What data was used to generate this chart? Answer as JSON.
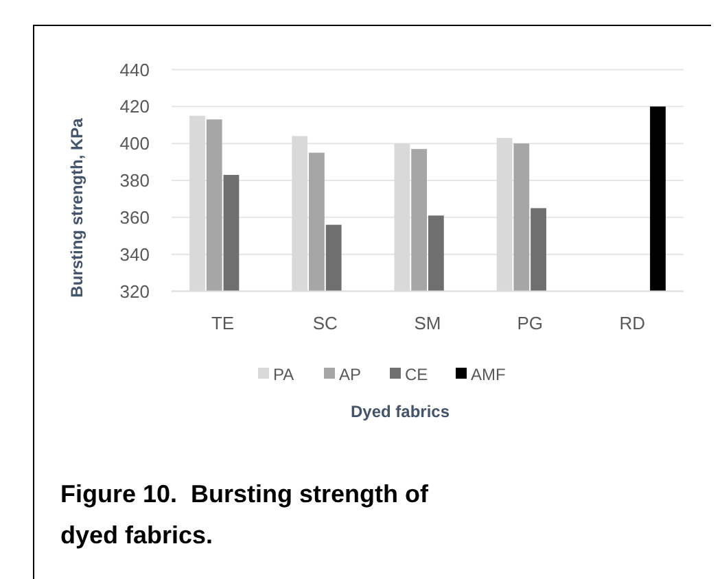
{
  "chart_data": {
    "type": "bar",
    "ylabel": "Bursting strength, KPa",
    "xlabel": "Dyed fabrics",
    "categories": [
      "TE",
      "SC",
      "SM",
      "PG",
      "RD"
    ],
    "series": [
      {
        "name": "PA",
        "color": "#d9d9d9",
        "values": [
          415,
          404,
          400,
          403,
          null
        ]
      },
      {
        "name": "AP",
        "color": "#a6a6a6",
        "values": [
          413,
          395,
          397,
          400,
          null
        ]
      },
      {
        "name": "CE",
        "color": "#6f6f6f",
        "values": [
          383,
          356,
          361,
          365,
          null
        ]
      },
      {
        "name": "AMF",
        "color": "#000000",
        "values": [
          null,
          null,
          null,
          null,
          420
        ]
      }
    ],
    "ylim": [
      320,
      440
    ],
    "yticks": [
      320,
      340,
      360,
      380,
      400,
      420,
      440
    ],
    "grid": "y",
    "legend": "bottom",
    "annotations": [
      "Figure 10.  Bursting strength of dyed fabrics."
    ]
  }
}
